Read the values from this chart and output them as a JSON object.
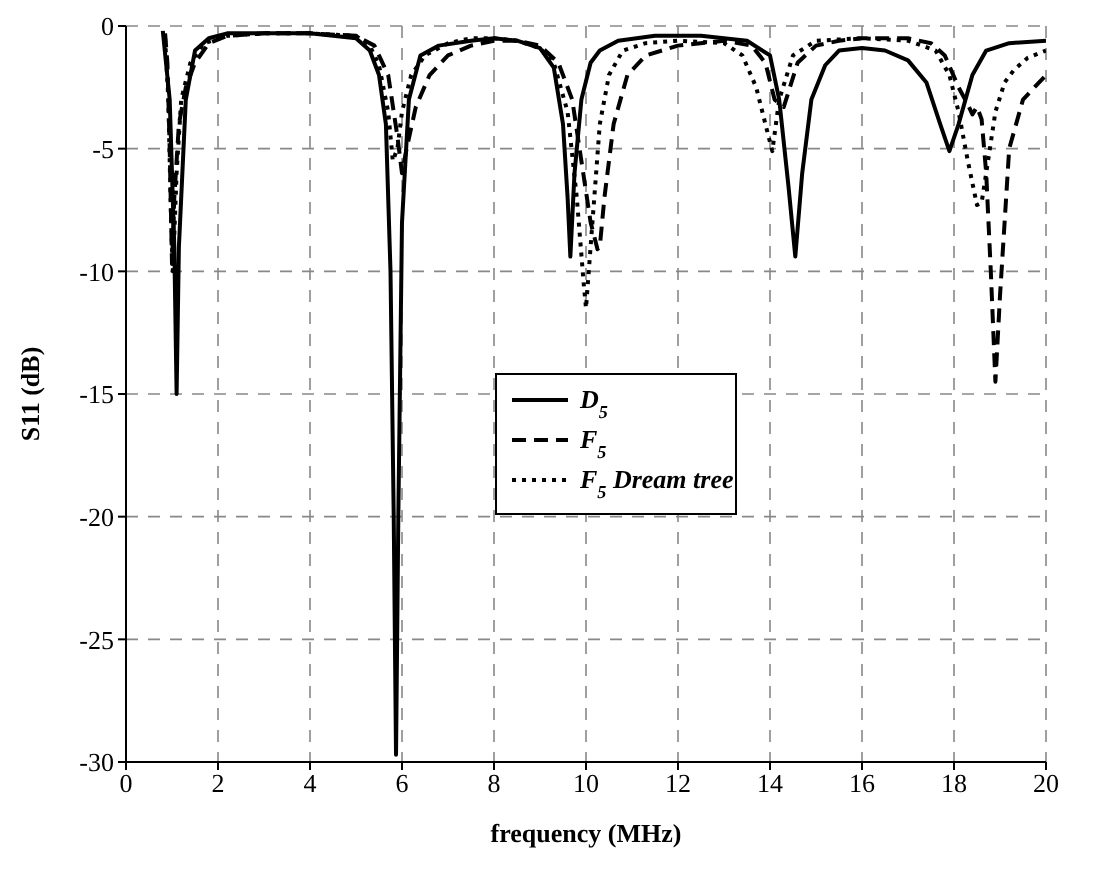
{
  "chart_data": {
    "type": "line",
    "xlabel": "frequency (MHz)",
    "ylabel": "S11 (dB)",
    "xlim": [
      0,
      20
    ],
    "xticks": [
      0,
      2,
      4,
      6,
      8,
      10,
      12,
      14,
      16,
      18,
      20
    ],
    "ylim": [
      -30,
      0
    ],
    "yticks": [
      -30,
      -25,
      -20,
      -15,
      -10,
      -5,
      0
    ],
    "grid": true,
    "legend": "center",
    "marker": "none",
    "series": [
      {
        "name": "D$_{5}$",
        "color": "#000000",
        "line_style": "solid",
        "x": [
          0.8,
          0.95,
          1.05,
          1.1,
          1.15,
          1.3,
          1.5,
          1.8,
          2.2,
          3,
          4,
          5,
          5.3,
          5.5,
          5.65,
          5.75,
          5.82,
          5.87,
          5.92,
          6.0,
          6.15,
          6.4,
          6.8,
          7.5,
          8,
          8.5,
          9,
          9.3,
          9.5,
          9.6,
          9.66,
          9.75,
          9.9,
          10.1,
          10.3,
          10.7,
          11.5,
          12.5,
          13.5,
          14,
          14.2,
          14.4,
          14.55,
          14.7,
          14.9,
          15.2,
          15.5,
          16,
          16.5,
          17,
          17.4,
          17.7,
          17.9,
          18.1,
          18.4,
          18.7,
          19.2,
          20
        ],
        "values": [
          -0.2,
          -3,
          -9,
          -15,
          -9,
          -3,
          -1,
          -0.5,
          -0.3,
          -0.3,
          -0.3,
          -0.5,
          -1,
          -2,
          -4,
          -10,
          -20,
          -29.7,
          -20,
          -8,
          -3,
          -1.2,
          -0.8,
          -0.6,
          -0.5,
          -0.6,
          -0.9,
          -1.7,
          -4,
          -7,
          -9.4,
          -6,
          -3,
          -1.5,
          -1,
          -0.6,
          -0.4,
          -0.4,
          -0.6,
          -1.2,
          -3,
          -6.5,
          -9.4,
          -6,
          -3,
          -1.6,
          -1,
          -0.9,
          -1,
          -1.4,
          -2.3,
          -4,
          -5.1,
          -4,
          -2,
          -1,
          -0.7,
          -0.6
        ]
      },
      {
        "name": "F$_{5}$",
        "color": "#000000",
        "line_style": "dashed",
        "x": [
          0.85,
          0.9,
          0.95,
          1.0,
          1.05,
          1.15,
          1.3,
          1.5,
          1.8,
          2.2,
          3,
          4,
          5,
          5.4,
          5.7,
          5.9,
          6.0,
          6.1,
          6.3,
          6.6,
          7,
          7.5,
          8,
          8.5,
          9,
          9.4,
          9.7,
          9.9,
          10.1,
          10.25,
          10.3,
          10.4,
          10.6,
          10.9,
          11.3,
          12,
          13,
          13.6,
          13.9,
          14.1,
          14.3,
          14.6,
          15,
          15.5,
          16,
          17,
          17.5,
          17.8,
          18.1,
          18.3,
          18.4,
          18.5,
          18.6,
          18.7,
          18.8,
          18.9,
          19.0,
          19.2,
          19.5,
          20
        ],
        "values": [
          -0.3,
          -1.5,
          -5,
          -9.7,
          -7,
          -4,
          -2.5,
          -1.5,
          -0.7,
          -0.4,
          -0.3,
          -0.3,
          -0.4,
          -0.8,
          -2,
          -4.5,
          -6,
          -5,
          -3.3,
          -2,
          -1.2,
          -0.8,
          -0.6,
          -0.6,
          -0.8,
          -1.5,
          -3,
          -5.5,
          -8,
          -9.1,
          -9,
          -7,
          -4,
          -2,
          -1.2,
          -0.8,
          -0.6,
          -0.8,
          -1.5,
          -3,
          -3.3,
          -1.5,
          -0.8,
          -0.6,
          -0.5,
          -0.5,
          -0.7,
          -1.2,
          -2.5,
          -3.2,
          -3.6,
          -3.3,
          -3.8,
          -6,
          -10,
          -14.5,
          -11,
          -5,
          -3,
          -2
        ]
      },
      {
        "name": "F$_{5}$ Dream tree",
        "color": "#000000",
        "line_style": "dotted",
        "x": [
          0.85,
          0.92,
          0.98,
          1.02,
          1.1,
          1.2,
          1.4,
          1.7,
          2.2,
          3,
          4,
          5,
          5.3,
          5.5,
          5.7,
          5.8,
          5.9,
          6.0,
          6.2,
          6.5,
          7,
          7.5,
          8,
          8.5,
          9,
          9.3,
          9.6,
          9.8,
          9.95,
          10.0,
          10.1,
          10.3,
          10.5,
          10.8,
          11.3,
          12,
          13,
          13.4,
          13.7,
          13.9,
          14.05,
          14.2,
          14.5,
          15,
          16,
          17,
          17.6,
          17.9,
          18.1,
          18.3,
          18.5,
          18.6,
          18.7,
          18.9,
          19.1,
          19.3,
          19.6,
          20
        ],
        "values": [
          -0.5,
          -3,
          -8,
          -10,
          -6,
          -3,
          -1.5,
          -0.7,
          -0.4,
          -0.3,
          -0.3,
          -0.4,
          -0.8,
          -1.6,
          -3.5,
          -5.5,
          -5,
          -3.5,
          -2,
          -1.2,
          -0.7,
          -0.5,
          -0.5,
          -0.6,
          -0.9,
          -1.5,
          -3.5,
          -7,
          -10.5,
          -11.5,
          -9,
          -4,
          -2,
          -1,
          -0.7,
          -0.6,
          -0.7,
          -1.2,
          -2.5,
          -4,
          -5.1,
          -3,
          -1.2,
          -0.6,
          -0.5,
          -0.6,
          -1,
          -2,
          -3.5,
          -5.5,
          -7.3,
          -7.2,
          -6,
          -3.5,
          -2.3,
          -1.8,
          -1.3,
          -1
        ]
      }
    ]
  }
}
